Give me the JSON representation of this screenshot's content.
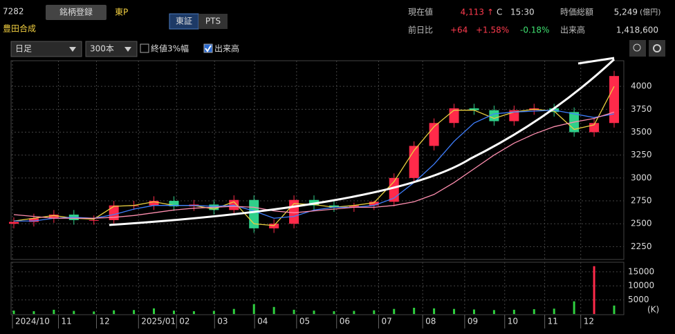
{
  "header": {
    "code": "7282",
    "register": "銘柄登録",
    "market": "東P",
    "name": "豊田合成",
    "tabs": [
      "東証",
      "PTS"
    ],
    "price_label": "現在値",
    "price": "4,113",
    "arrow": "↑",
    "flag": "C",
    "time": "15:30",
    "cap_label": "時価総額",
    "cap": "5,249",
    "cap_unit": "(億円)",
    "change_label": "前日比",
    "change": "+64",
    "change_pct": "+1.58%",
    "other_pct": "-0.18%",
    "volume_label": "出来高",
    "volume": "1,418,600"
  },
  "controls": {
    "period": "日足",
    "count": "300本",
    "option1": "終値3%幅",
    "option2": "出来高"
  },
  "chart_data": {
    "type": "candlestick",
    "x": [
      0,
      10,
      20,
      30,
      40,
      50,
      60,
      70,
      80,
      90,
      100,
      110,
      120,
      130,
      140,
      150,
      160,
      170,
      180,
      190,
      200,
      210,
      220,
      230,
      240,
      250,
      260,
      270,
      280,
      290,
      300
    ],
    "xlim": [
      0,
      300
    ],
    "xticks": [
      {
        "value": 0,
        "label": "2024/10"
      },
      {
        "value": 23,
        "label": "11"
      },
      {
        "value": 42,
        "label": "12"
      },
      {
        "value": 63,
        "label": "2025/01"
      },
      {
        "value": 82,
        "label": "02"
      },
      {
        "value": 101,
        "label": "03"
      },
      {
        "value": 121,
        "label": "04"
      },
      {
        "value": 142,
        "label": "05"
      },
      {
        "value": 162,
        "label": "06"
      },
      {
        "value": 183,
        "label": "07"
      },
      {
        "value": 205,
        "label": "08"
      },
      {
        "value": 226,
        "label": "09"
      },
      {
        "value": 246,
        "label": "10"
      },
      {
        "value": 266,
        "label": "11"
      },
      {
        "value": 284,
        "label": "12"
      }
    ],
    "open": [
      2500,
      2520,
      2560,
      2600,
      2540,
      2540,
      2700,
      2700,
      2750,
      2690,
      2710,
      2650,
      2760,
      2450,
      2500,
      2760,
      2700,
      2680,
      2700,
      2740,
      3000,
      3350,
      3600,
      3760,
      3740,
      3620,
      3740,
      3760,
      3720,
      3500,
      3600
    ],
    "high": [
      2570,
      2610,
      2650,
      2650,
      2590,
      2750,
      2750,
      2800,
      2800,
      2760,
      2760,
      2810,
      2810,
      2550,
      2810,
      2810,
      2750,
      2730,
      2750,
      3050,
      3400,
      3650,
      3810,
      3810,
      3790,
      3790,
      3810,
      3810,
      3770,
      3650,
      4170
    ],
    "low": [
      2450,
      2470,
      2510,
      2490,
      2490,
      2490,
      2650,
      2650,
      2640,
      2640,
      2600,
      2600,
      2400,
      2400,
      2450,
      2650,
      2630,
      2630,
      2650,
      2690,
      2950,
      3300,
      3550,
      3690,
      3570,
      3570,
      3690,
      3670,
      3450,
      3450,
      3550
    ],
    "close": [
      2520,
      2560,
      2600,
      2540,
      2540,
      2700,
      2700,
      2750,
      2690,
      2710,
      2650,
      2760,
      2450,
      2500,
      2760,
      2700,
      2680,
      2700,
      2740,
      3000,
      3350,
      3600,
      3760,
      3740,
      3620,
      3740,
      3760,
      3720,
      3500,
      3600,
      4113
    ],
    "up_color": "#ff2a4a",
    "down_color": "#2fd08a",
    "ma_lines": [
      {
        "color": "#e8d040",
        "values": [
          2530,
          2560,
          2590,
          2560,
          2550,
          2690,
          2700,
          2740,
          2700,
          2700,
          2660,
          2740,
          2500,
          2480,
          2720,
          2710,
          2680,
          2700,
          2730,
          2960,
          3300,
          3560,
          3740,
          3740,
          3650,
          3720,
          3750,
          3730,
          3530,
          3580,
          4000
        ]
      },
      {
        "color": "#3f7fff",
        "values": [
          2530,
          2530,
          2560,
          2570,
          2560,
          2600,
          2660,
          2700,
          2700,
          2700,
          2690,
          2700,
          2640,
          2560,
          2580,
          2650,
          2680,
          2680,
          2700,
          2780,
          2950,
          3150,
          3400,
          3600,
          3700,
          3720,
          3730,
          3740,
          3700,
          3660,
          3700
        ]
      },
      {
        "color": "#ff8fb0",
        "values": [
          2600,
          2580,
          2560,
          2560,
          2560,
          2570,
          2590,
          2620,
          2650,
          2670,
          2680,
          2690,
          2680,
          2640,
          2620,
          2640,
          2660,
          2680,
          2680,
          2700,
          2740,
          2820,
          2950,
          3100,
          3250,
          3380,
          3480,
          3560,
          3610,
          3650,
          3720
        ]
      }
    ],
    "ylim": [
      2110,
      4280
    ],
    "yticks": [
      2250,
      2500,
      2750,
      3000,
      3250,
      3500,
      3750,
      4000
    ],
    "grid": true,
    "volume": {
      "values": [
        1200,
        1000,
        1500,
        1100,
        900,
        1300,
        1400,
        2000,
        1200,
        1000,
        1100,
        1800,
        3500,
        2500,
        1500,
        1200,
        1000,
        1100,
        1300,
        1800,
        2200,
        2000,
        1800,
        1600,
        1400,
        1500,
        1700,
        1900,
        4500,
        17000,
        3000
      ],
      "ylim": [
        0,
        18400
      ],
      "yticks": [
        5000,
        10000,
        15000
      ],
      "unit": "(K)",
      "color": "#2fd040",
      "spike_color": "#ff2a4a"
    }
  }
}
